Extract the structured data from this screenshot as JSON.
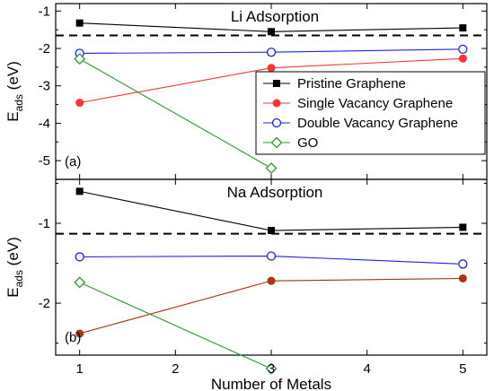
{
  "chart_data": [
    {
      "type": "line",
      "panel_label": "(a)",
      "title": "Li Adsorption",
      "ylabel_main": "E",
      "ylabel_sub": "ads",
      "ylabel_unit": "(eV)",
      "xlabel": "",
      "ylim": [
        -5.5,
        -0.8
      ],
      "yticks": [
        -5,
        -4,
        -3,
        -2,
        -1
      ],
      "ytick_labels": [
        "-5",
        "-4",
        "-3",
        "-2",
        "-1"
      ],
      "reference_line": -1.65,
      "legend_position": "right",
      "series": [
        {
          "name": "Pristine Graphene",
          "color": "#000000",
          "marker": "filled-square",
          "x": [
            1,
            3,
            5
          ],
          "y": [
            -1.32,
            -1.55,
            -1.45
          ]
        },
        {
          "name": "Single Vacancy Graphene",
          "color": "#ff3333",
          "marker": "filled-circle",
          "x": [
            1,
            3,
            5
          ],
          "y": [
            -3.45,
            -2.52,
            -2.27
          ]
        },
        {
          "name": "Double Vacancy Graphene",
          "color": "#2222dd",
          "marker": "open-circle",
          "x": [
            1,
            3,
            5
          ],
          "y": [
            -2.13,
            -2.1,
            -2.02
          ]
        },
        {
          "name": "GO",
          "color": "#2a9a2a",
          "marker": "open-diamond",
          "x": [
            1,
            3
          ],
          "y": [
            -2.28,
            -5.2
          ]
        }
      ]
    },
    {
      "type": "line",
      "panel_label": "(b)",
      "title": "Na Adsorption",
      "ylabel_main": "E",
      "ylabel_sub": "ads",
      "ylabel_unit": "(eV)",
      "xlabel": "Number of Metals",
      "xlim": [
        0.75,
        5.25
      ],
      "xticks": [
        1,
        2,
        3,
        4,
        5
      ],
      "xtick_labels": [
        "1",
        "2",
        "3",
        "4",
        "5"
      ],
      "ylim": [
        -2.65,
        -0.45
      ],
      "yticks": [
        -2,
        -1
      ],
      "ytick_labels": [
        "-2",
        "-1"
      ],
      "reference_line": -1.13,
      "series": [
        {
          "name": "Pristine Graphene",
          "color": "#000000",
          "marker": "filled-square",
          "x": [
            1,
            3,
            5
          ],
          "y": [
            -0.6,
            -1.09,
            -1.05
          ]
        },
        {
          "name": "Single Vacancy Graphene",
          "color": "#aa3311",
          "marker": "filled-circle",
          "x": [
            1,
            3,
            5
          ],
          "y": [
            -2.38,
            -1.72,
            -1.69
          ]
        },
        {
          "name": "Double Vacancy Graphene",
          "color": "#2222dd",
          "marker": "open-circle",
          "x": [
            1,
            3,
            5
          ],
          "y": [
            -1.42,
            -1.41,
            -1.51
          ]
        },
        {
          "name": "GO",
          "color": "#2a9a2a",
          "marker": "open-diamond",
          "x": [
            1,
            3
          ],
          "y": [
            -1.74,
            -2.82
          ]
        }
      ]
    }
  ]
}
